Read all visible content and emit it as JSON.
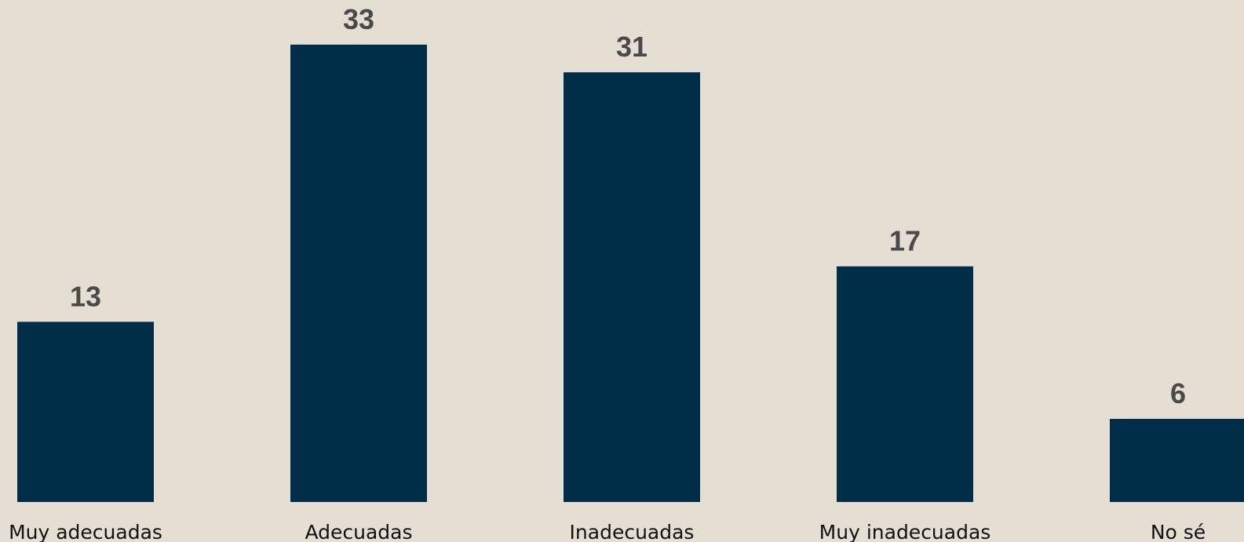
{
  "colors": {
    "background": "#e4ded3",
    "bar": "#002e48",
    "value_label": "#4a4a4a",
    "category_label": "#111111"
  },
  "chart_data": {
    "type": "bar",
    "title": "",
    "xlabel": "",
    "ylabel": "",
    "categories": [
      "Muy adecuadas",
      "Adecuadas",
      "Inadecuadas",
      "Muy inadecuadas",
      "No sé"
    ],
    "values": [
      13,
      33,
      31,
      17,
      6
    ],
    "data_labels": [
      "13",
      "33",
      "31",
      "17",
      "6"
    ],
    "ylim": [
      0,
      36
    ],
    "grid": false,
    "legend": "none",
    "axes_visible": false
  }
}
